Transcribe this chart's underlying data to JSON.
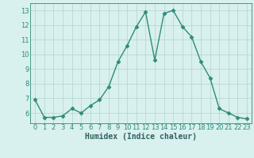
{
  "x": [
    0,
    1,
    2,
    3,
    4,
    5,
    6,
    7,
    8,
    9,
    10,
    11,
    12,
    13,
    14,
    15,
    16,
    17,
    18,
    19,
    20,
    21,
    22,
    23
  ],
  "y": [
    6.9,
    5.7,
    5.7,
    5.8,
    6.3,
    6.0,
    6.5,
    6.9,
    7.8,
    9.5,
    10.6,
    11.9,
    12.9,
    9.6,
    12.8,
    13.0,
    11.9,
    11.2,
    9.5,
    8.4,
    6.3,
    6.0,
    5.7,
    5.6
  ],
  "line_color": "#2e8b7a",
  "marker": "D",
  "markersize": 2.5,
  "linewidth": 1.0,
  "bg_color": "#d8f0ee",
  "grid_color": "#b0d4d0",
  "xlabel": "Humidex (Indice chaleur)",
  "xlabel_fontsize": 7,
  "ylim": [
    5.3,
    13.5
  ],
  "xlim": [
    -0.5,
    23.5
  ],
  "yticks": [
    6,
    7,
    8,
    9,
    10,
    11,
    12,
    13
  ],
  "xticks": [
    0,
    1,
    2,
    3,
    4,
    5,
    6,
    7,
    8,
    9,
    10,
    11,
    12,
    13,
    14,
    15,
    16,
    17,
    18,
    19,
    20,
    21,
    22,
    23
  ],
  "tick_fontsize": 6,
  "tick_color": "#2e8b7a",
  "label_color": "#2e6060"
}
